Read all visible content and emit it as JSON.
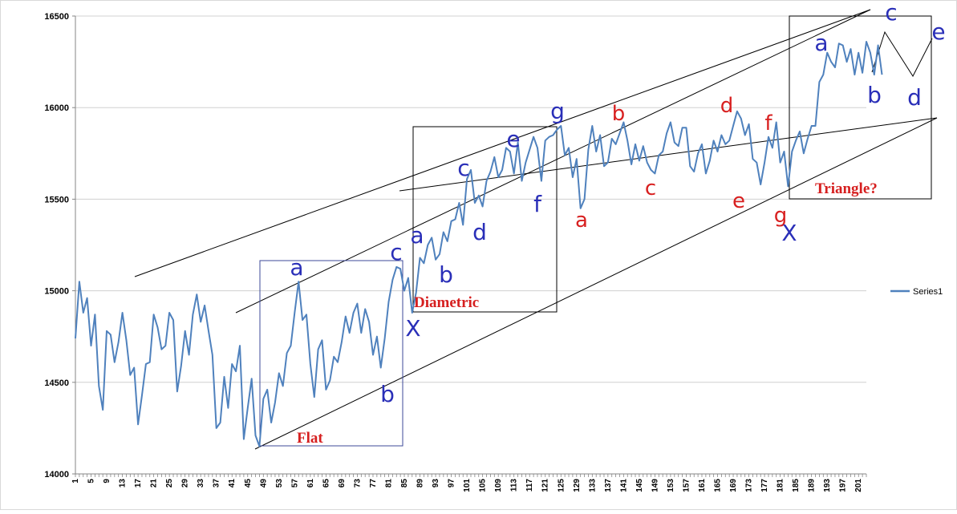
{
  "chart_data": {
    "type": "line",
    "title": "",
    "xlabel": "",
    "ylabel": "",
    "ylim": [
      14000,
      16500
    ],
    "yticks": [
      14000,
      14500,
      15000,
      15500,
      16000,
      16500
    ],
    "xlim": [
      1,
      203
    ],
    "xtick_labels": [
      "1",
      "5",
      "9",
      "13",
      "17",
      "21",
      "25",
      "29",
      "33",
      "37",
      "41",
      "45",
      "49",
      "53",
      "57",
      "61",
      "65",
      "69",
      "73",
      "77",
      "81",
      "85",
      "89",
      "93",
      "97",
      "101",
      "105",
      "109",
      "113",
      "117",
      "121",
      "125",
      "129",
      "133",
      "137",
      "141",
      "145",
      "149",
      "153",
      "157",
      "161",
      "165",
      "169",
      "173",
      "177",
      "181",
      "185",
      "189",
      "193",
      "197",
      "201"
    ],
    "grid": "horizontal",
    "legend": {
      "position": "right"
    },
    "series": [
      {
        "name": "Series1",
        "color": "#4f81bd",
        "values": [
          14740,
          15050,
          14880,
          14960,
          14700,
          14870,
          14480,
          14350,
          14780,
          14760,
          14610,
          14720,
          14880,
          14730,
          14540,
          14580,
          14270,
          14430,
          14600,
          14610,
          14870,
          14800,
          14680,
          14700,
          14880,
          14840,
          14450,
          14590,
          14780,
          14650,
          14870,
          14980,
          14830,
          14920,
          14780,
          14650,
          14250,
          14280,
          14530,
          14360,
          14600,
          14560,
          14700,
          14190,
          14360,
          14520,
          14210,
          14150,
          14410,
          14460,
          14280,
          14390,
          14550,
          14480,
          14660,
          14700,
          14880,
          15050,
          14840,
          14870,
          14600,
          14420,
          14680,
          14730,
          14460,
          14510,
          14640,
          14610,
          14720,
          14860,
          14770,
          14880,
          14930,
          14770,
          14900,
          14830,
          14650,
          14750,
          14580,
          14740,
          14940,
          15060,
          15130,
          15120,
          15000,
          15070,
          14880,
          14990,
          15180,
          15150,
          15250,
          15290,
          15170,
          15200,
          15320,
          15270,
          15380,
          15390,
          15480,
          15360,
          15610,
          15660,
          15480,
          15520,
          15460,
          15600,
          15650,
          15730,
          15620,
          15660,
          15780,
          15760,
          15640,
          15810,
          15600,
          15700,
          15770,
          15840,
          15780,
          15600,
          15820,
          15840,
          15850,
          15880,
          15900,
          15740,
          15780,
          15620,
          15720,
          15450,
          15500,
          15770,
          15900,
          15760,
          15850,
          15680,
          15700,
          15830,
          15800,
          15860,
          15920,
          15820,
          15690,
          15800,
          15710,
          15790,
          15700,
          15660,
          15640,
          15740,
          15760,
          15860,
          15920,
          15810,
          15790,
          15890,
          15890,
          15680,
          15650,
          15750,
          15800,
          15640,
          15710,
          15820,
          15760,
          15850,
          15800,
          15820,
          15900,
          15980,
          15940,
          15850,
          15910,
          15720,
          15700,
          15580,
          15700,
          15840,
          15780,
          15920,
          15700,
          15760,
          15570,
          15760,
          15820,
          15870,
          15750,
          15830,
          15900,
          15900,
          16140,
          16180,
          16300,
          16250,
          16220,
          16350,
          16340,
          16250,
          16320,
          16180,
          16300,
          16190,
          16360,
          16300,
          16180,
          16340,
          16180
        ]
      }
    ],
    "annotations": [
      {
        "text": "a",
        "color": "blue"
      },
      {
        "text": "c",
        "color": "blue"
      },
      {
        "text": "b",
        "color": "blue"
      },
      {
        "text": "X",
        "color": "blue"
      },
      {
        "text": "a",
        "color": "blue"
      },
      {
        "text": "b",
        "color": "blue"
      },
      {
        "text": "c",
        "color": "blue"
      },
      {
        "text": "d",
        "color": "blue"
      },
      {
        "text": "e",
        "color": "blue"
      },
      {
        "text": "f",
        "color": "blue"
      },
      {
        "text": "g",
        "color": "blue"
      },
      {
        "text": "a",
        "color": "red"
      },
      {
        "text": "b",
        "color": "red"
      },
      {
        "text": "c",
        "color": "red"
      },
      {
        "text": "d",
        "color": "red"
      },
      {
        "text": "e",
        "color": "red"
      },
      {
        "text": "f",
        "color": "red"
      },
      {
        "text": "g",
        "color": "red"
      },
      {
        "text": "X",
        "color": "blue"
      },
      {
        "text": "a",
        "color": "blue"
      },
      {
        "text": "c",
        "color": "blue"
      },
      {
        "text": "e",
        "color": "blue"
      },
      {
        "text": "b",
        "color": "blue"
      },
      {
        "text": "d",
        "color": "blue"
      }
    ],
    "pattern_labels": [
      "Flat",
      "Diametric",
      "Triangle?"
    ]
  }
}
